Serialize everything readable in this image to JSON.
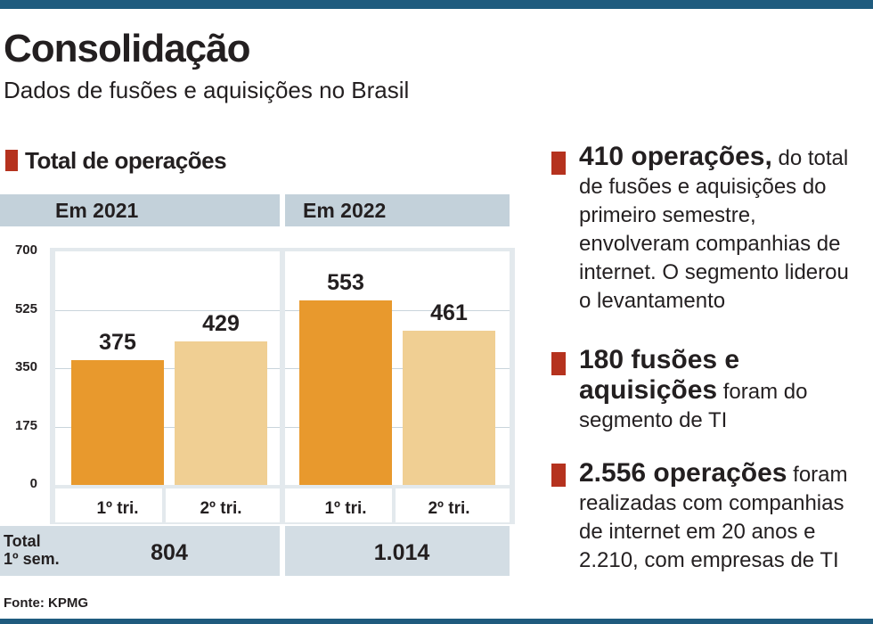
{
  "header": {
    "title": "Consolidação",
    "subtitle": "Dados de fusões e aquisições no Brasil"
  },
  "section_title": "Total de operações",
  "source": "Fonte: KPMG",
  "colors": {
    "accent_rule": "#1f5b7e",
    "marker": "#b5321e",
    "bar_1st": "#e8992d",
    "bar_2nd": "#f0cf93",
    "band": "#c3d1da"
  },
  "chart_data": {
    "type": "bar",
    "title": "Total de operações",
    "groups": [
      "Em 2021",
      "Em 2022"
    ],
    "categories": [
      "1º tri.",
      "2º tri."
    ],
    "series": [
      {
        "group": "Em 2021",
        "values": [
          375,
          429
        ]
      },
      {
        "group": "Em 2022",
        "values": [
          553,
          461
        ]
      }
    ],
    "value_labels": [
      [
        "375",
        "429"
      ],
      [
        "553",
        "461"
      ]
    ],
    "ylim": [
      0,
      700
    ],
    "yticks": [
      "700",
      "525",
      "350",
      "175",
      "0"
    ],
    "grid": true,
    "totals": {
      "label_line1": "Total",
      "label_line2": "1º sem.",
      "values": [
        "804",
        "1.014"
      ]
    }
  },
  "notes": [
    {
      "highlight": "410 operações,",
      "text": " do total de fusões e aquisições do primeiro semestre, envolveram companhias de internet. O segmento liderou o levantamento"
    },
    {
      "highlight": "180 fusões e aquisições",
      "text": " foram do segmento de TI"
    },
    {
      "highlight": "2.556 operações",
      "text": " foram realizadas com companhias de internet em 20 anos e 2.210, com empresas de TI"
    }
  ]
}
